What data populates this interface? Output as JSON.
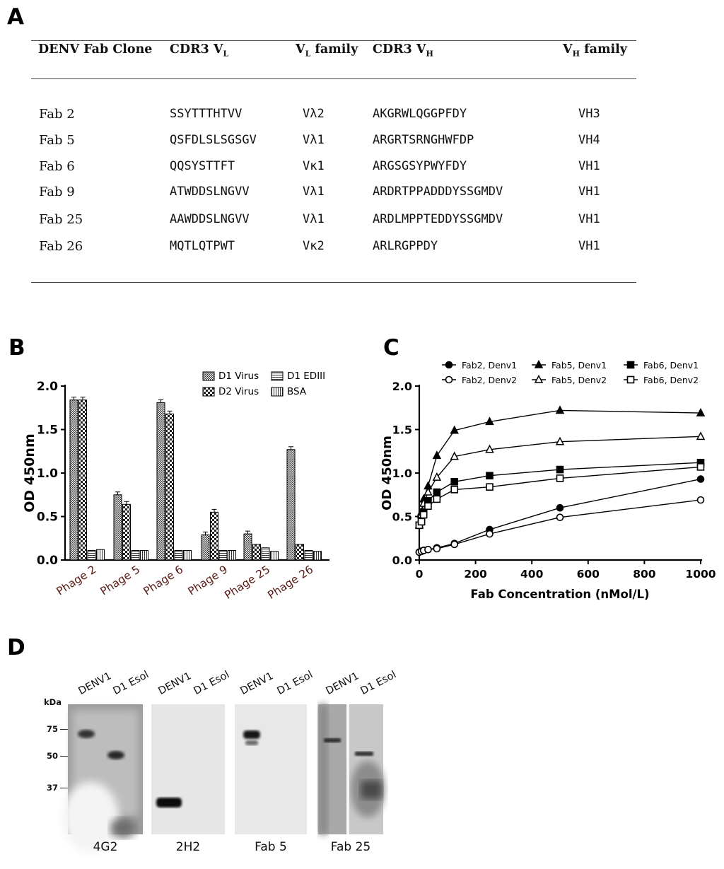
{
  "panels": {
    "a": "A",
    "b": "B",
    "c": "C",
    "d": "D"
  },
  "table": {
    "headers": {
      "clone": "DENV Fab Clone",
      "cdr3_vl": "CDR3 V",
      "cdr3_vl_sub": "L",
      "vl_family": "V",
      "vl_family_sub": "L",
      "vl_family_rest": " family",
      "cdr3_vh": "CDR3 V",
      "cdr3_vh_sub": "H",
      "vh_family": "V",
      "vh_family_sub": "H",
      "vh_family_rest": " family"
    },
    "rows": [
      {
        "clone": "Fab 2",
        "cdr3_vl": "SSYTTTHTVV",
        "vl_family": "Vλ2",
        "cdr3_vh": "AKGRWLQGGPFDY",
        "vh_family": "VH3"
      },
      {
        "clone": "Fab 5",
        "cdr3_vl": "QSFDLSLSGSGV",
        "vl_family": "Vλ1",
        "cdr3_vh": "ARGRTSRNGHWFDP",
        "vh_family": "VH4"
      },
      {
        "clone": "Fab 6",
        "cdr3_vl": "QQSYSTTFT",
        "vl_family": "Vκ1",
        "cdr3_vh": "ARGSGSYPWYFDY",
        "vh_family": "VH1"
      },
      {
        "clone": "Fab 9",
        "cdr3_vl": "ATWDDSLNGVV",
        "vl_family": "Vλ1",
        "cdr3_vh": "ARDRTPPADDDYSSGMDV",
        "vh_family": "VH1"
      },
      {
        "clone": "Fab 25",
        "cdr3_vl": "AAWDDSLNGVV",
        "vl_family": "Vλ1",
        "cdr3_vh": "ARDLMPPTEDDYSSGMDV",
        "vh_family": "VH1"
      },
      {
        "clone": "Fab 26",
        "cdr3_vl": "MQTLQTPWT",
        "vl_family": "Vκ2",
        "cdr3_vh": "ARLRGPPDY",
        "vh_family": "VH1"
      }
    ]
  },
  "chart_data": [
    {
      "type": "bar",
      "ylabel": "OD 450nm",
      "ylim": [
        0,
        2.0
      ],
      "yticks": [
        "0.0",
        "0.5",
        "1.0",
        "1.5",
        "2.0"
      ],
      "categories": [
        "Phage 2",
        "Phage 5",
        "Phage 6",
        "Phage 9",
        "Phage 25",
        "Phage 26"
      ],
      "legend_position": "top-right",
      "series": [
        {
          "name": "D1 Virus",
          "values": [
            1.84,
            0.75,
            1.81,
            0.29,
            0.3,
            1.27
          ]
        },
        {
          "name": "D2 Virus",
          "values": [
            1.84,
            0.64,
            1.68,
            0.55,
            0.18,
            0.18
          ]
        },
        {
          "name": "D1 EDIII",
          "values": [
            0.11,
            0.11,
            0.11,
            0.11,
            0.14,
            0.11
          ]
        },
        {
          "name": "BSA",
          "values": [
            0.12,
            0.11,
            0.11,
            0.11,
            0.1,
            0.1
          ]
        }
      ]
    },
    {
      "type": "scatter",
      "xlabel": "Fab Concentration (nMol/L)",
      "ylabel": "OD 450nm",
      "xlim": [
        0,
        1000
      ],
      "ylim": [
        0,
        2.0
      ],
      "xticks": [
        "0",
        "200",
        "400",
        "600",
        "800",
        "1000"
      ],
      "yticks": [
        "0.0",
        "0.5",
        "1.0",
        "1.5",
        "2.0"
      ],
      "legend_position": "top",
      "series": [
        {
          "name": "Fab2, Denv1",
          "marker": "circle-filled",
          "x": [
            0,
            7.8,
            15.6,
            31.25,
            62.5,
            125,
            250,
            500,
            1000
          ],
          "y": [
            0.09,
            0.1,
            0.11,
            0.12,
            0.14,
            0.19,
            0.35,
            0.6,
            0.93
          ]
        },
        {
          "name": "Fab2, Denv2",
          "marker": "circle-open",
          "x": [
            0,
            7.8,
            15.6,
            31.25,
            62.5,
            125,
            250,
            500,
            1000
          ],
          "y": [
            0.09,
            0.1,
            0.11,
            0.12,
            0.13,
            0.18,
            0.3,
            0.49,
            0.69
          ]
        },
        {
          "name": "Fab5, Denv1",
          "marker": "triangle-filled",
          "x": [
            0,
            7.8,
            15.6,
            31.25,
            62.5,
            125,
            250,
            500,
            1000
          ],
          "y": [
            0.4,
            0.55,
            0.7,
            0.85,
            1.2,
            1.49,
            1.59,
            1.72,
            1.69
          ]
        },
        {
          "name": "Fab5, Denv2",
          "marker": "triangle-open",
          "x": [
            0,
            7.8,
            15.6,
            31.25,
            62.5,
            125,
            250,
            500,
            1000
          ],
          "y": [
            0.4,
            0.52,
            0.65,
            0.78,
            0.95,
            1.19,
            1.27,
            1.36,
            1.42
          ]
        },
        {
          "name": "Fab6, Denv1",
          "marker": "square-filled",
          "x": [
            0,
            7.8,
            15.6,
            31.25,
            62.5,
            125,
            250,
            500,
            1000
          ],
          "y": [
            0.4,
            0.45,
            0.55,
            0.68,
            0.78,
            0.9,
            0.97,
            1.04,
            1.12
          ]
        },
        {
          "name": "Fab6, Denv2",
          "marker": "square-open",
          "x": [
            0,
            7.8,
            15.6,
            31.25,
            62.5,
            125,
            250,
            500,
            1000
          ],
          "y": [
            0.4,
            0.44,
            0.52,
            0.62,
            0.7,
            0.81,
            0.84,
            0.94,
            1.07
          ]
        }
      ]
    }
  ],
  "western": {
    "kda_label": "kDa",
    "markers": [
      "75",
      "50",
      "37"
    ],
    "lanes": [
      "DENV1",
      "D1 Esol"
    ],
    "blots": [
      "4G2",
      "2H2",
      "Fab 5",
      "Fab 25"
    ]
  }
}
